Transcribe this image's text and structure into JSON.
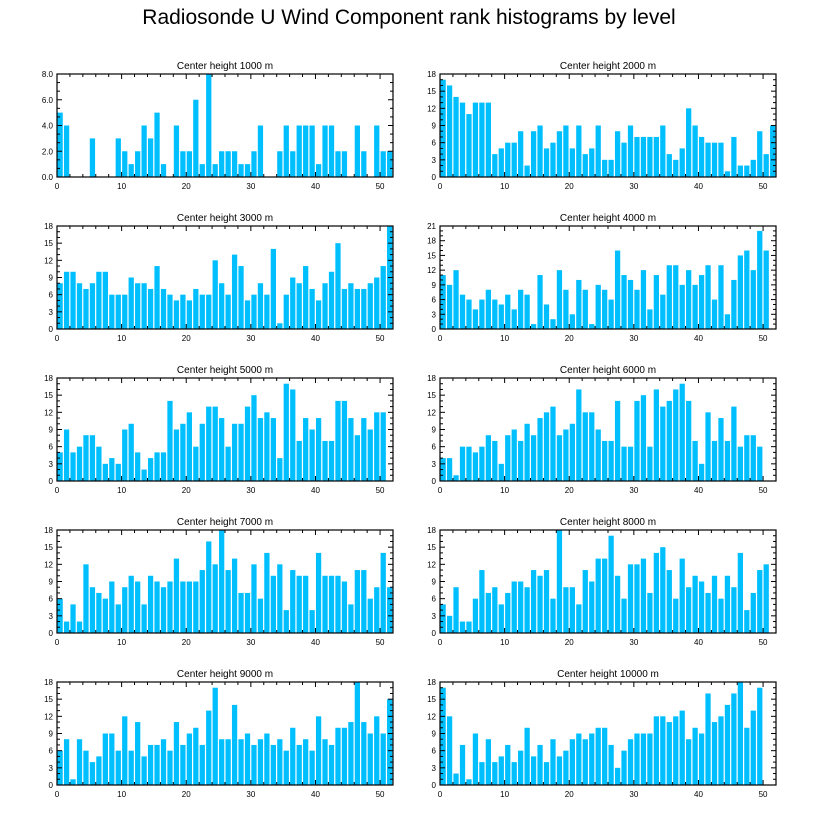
{
  "title": "Radiosonde U Wind Component rank histograms by level",
  "colors": {
    "bar": "#00BFFF",
    "axis": "#000000"
  },
  "chart_data": [
    {
      "type": "bar",
      "title": "Center height 1000 m",
      "ylim": [
        0,
        8
      ],
      "yticks": [
        "0.0",
        "2.0",
        "4.0",
        "6.0",
        "8.0"
      ],
      "ytick_values": [
        0,
        2,
        4,
        6,
        8
      ],
      "xticks": [
        0,
        10,
        20,
        30,
        40,
        50
      ],
      "xlim": [
        0,
        52
      ],
      "values": [
        5,
        4,
        0,
        0,
        0,
        3,
        0,
        0,
        0,
        3,
        2,
        1,
        2,
        4,
        3,
        5,
        1,
        0,
        4,
        2,
        2,
        6,
        1,
        8,
        1,
        2,
        2,
        2,
        1,
        1,
        2,
        4,
        0,
        0,
        2,
        4,
        2,
        4,
        4,
        4,
        1,
        4,
        4,
        2,
        2,
        0,
        4,
        2,
        0,
        4,
        2,
        2
      ]
    },
    {
      "type": "bar",
      "title": "Center height 2000 m",
      "ylim": [
        0,
        18
      ],
      "yticks": [
        "0",
        "3",
        "6",
        "9",
        "12",
        "15",
        "18"
      ],
      "ytick_values": [
        0,
        3,
        6,
        9,
        12,
        15,
        18
      ],
      "xticks": [
        0,
        10,
        20,
        30,
        40,
        50
      ],
      "xlim": [
        0,
        52
      ],
      "values": [
        17,
        16,
        14,
        13,
        11,
        13,
        13,
        13,
        4,
        5,
        6,
        6,
        8,
        2,
        8,
        9,
        5,
        6,
        8,
        9,
        5,
        9,
        4,
        5,
        9,
        3,
        3,
        8,
        6,
        9,
        7,
        7,
        7,
        7,
        9,
        4,
        3,
        5,
        12,
        9,
        7,
        6,
        6,
        6,
        1,
        7,
        2,
        2,
        3,
        8,
        4,
        9
      ]
    },
    {
      "type": "bar",
      "title": "Center height 3000 m",
      "ylim": [
        0,
        18
      ],
      "yticks": [
        "0",
        "3",
        "6",
        "9",
        "12",
        "15",
        "18"
      ],
      "ytick_values": [
        0,
        3,
        6,
        9,
        12,
        15,
        18
      ],
      "xticks": [
        0,
        10,
        20,
        30,
        40,
        50
      ],
      "xlim": [
        0,
        52
      ],
      "values": [
        8,
        10,
        10,
        8,
        7,
        8,
        10,
        10,
        6,
        6,
        6,
        9,
        8,
        8,
        7,
        11,
        7,
        6,
        5,
        6,
        5,
        7,
        6,
        6,
        12,
        8,
        6,
        13,
        11,
        5,
        6,
        8,
        6,
        14,
        1,
        6,
        9,
        8,
        11,
        7,
        5,
        8,
        10,
        15,
        7,
        8,
        7,
        7,
        8,
        9,
        11,
        18
      ]
    },
    {
      "type": "bar",
      "title": "Center height 4000 m",
      "ylim": [
        0,
        21
      ],
      "yticks": [
        "0",
        "3",
        "6",
        "9",
        "12",
        "15",
        "18",
        "21"
      ],
      "ytick_values": [
        0,
        3,
        6,
        9,
        12,
        15,
        18,
        21
      ],
      "xticks": [
        0,
        10,
        20,
        30,
        40,
        50
      ],
      "xlim": [
        0,
        52
      ],
      "values": [
        11,
        9,
        12,
        7,
        6,
        4,
        6,
        8,
        6,
        5,
        7,
        4,
        8,
        7,
        1,
        11,
        5,
        2,
        12,
        8,
        3,
        10,
        8,
        1,
        9,
        8,
        6,
        16,
        11,
        10,
        8,
        12,
        4,
        11,
        7,
        13,
        13,
        9,
        12,
        9,
        11,
        13,
        6,
        13,
        3,
        10,
        15,
        16,
        12,
        20,
        16,
        0
      ]
    },
    {
      "type": "bar",
      "title": "Center height 5000 m",
      "ylim": [
        0,
        18
      ],
      "yticks": [
        "0",
        "3",
        "6",
        "9",
        "12",
        "15",
        "18"
      ],
      "ytick_values": [
        0,
        3,
        6,
        9,
        12,
        15,
        18
      ],
      "xticks": [
        0,
        10,
        20,
        30,
        40,
        50
      ],
      "xlim": [
        0,
        52
      ],
      "values": [
        5,
        9,
        5,
        6,
        8,
        8,
        6,
        3,
        4,
        3,
        9,
        10,
        5,
        2,
        4,
        5,
        5,
        14,
        9,
        10,
        12,
        6,
        10,
        13,
        13,
        11,
        6,
        10,
        10,
        13,
        15,
        11,
        12,
        11,
        4,
        17,
        16,
        7,
        11,
        9,
        11,
        7,
        7,
        14,
        14,
        11,
        8,
        11,
        9,
        12,
        12,
        0
      ]
    },
    {
      "type": "bar",
      "title": "Center height 6000 m",
      "ylim": [
        0,
        18
      ],
      "yticks": [
        "0",
        "3",
        "6",
        "9",
        "12",
        "15",
        "18"
      ],
      "ytick_values": [
        0,
        3,
        6,
        9,
        12,
        15,
        18
      ],
      "xticks": [
        0,
        10,
        20,
        30,
        40,
        50
      ],
      "xlim": [
        0,
        52
      ],
      "values": [
        4,
        4,
        1,
        6,
        6,
        5,
        6,
        8,
        7,
        3,
        8,
        9,
        7,
        10,
        8,
        11,
        12,
        13,
        8,
        9,
        10,
        16,
        12,
        12,
        9,
        7,
        7,
        14,
        6,
        6,
        14,
        15,
        6,
        16,
        13,
        14,
        16,
        17,
        14,
        7,
        3,
        12,
        7,
        11,
        7,
        13,
        6,
        8,
        8,
        6,
        0,
        0
      ]
    },
    {
      "type": "bar",
      "title": "Center height 7000 m",
      "ylim": [
        0,
        18
      ],
      "yticks": [
        "0",
        "3",
        "6",
        "9",
        "12",
        "15",
        "18"
      ],
      "ytick_values": [
        0,
        3,
        6,
        9,
        12,
        15,
        18
      ],
      "xticks": [
        0,
        10,
        20,
        30,
        40,
        50
      ],
      "xlim": [
        0,
        52
      ],
      "values": [
        6,
        2,
        5,
        2,
        12,
        8,
        7,
        6,
        9,
        5,
        8,
        10,
        9,
        5,
        10,
        9,
        8,
        9,
        13,
        9,
        9,
        9,
        11,
        16,
        12,
        18,
        11,
        13,
        7,
        7,
        12,
        6,
        14,
        10,
        12,
        4,
        11,
        10,
        10,
        4,
        14,
        10,
        10,
        10,
        9,
        5,
        11,
        11,
        6,
        8,
        14,
        8
      ]
    },
    {
      "type": "bar",
      "title": "Center height 8000 m",
      "ylim": [
        0,
        18
      ],
      "yticks": [
        "0",
        "3",
        "6",
        "9",
        "12",
        "15",
        "18"
      ],
      "ytick_values": [
        0,
        3,
        6,
        9,
        12,
        15,
        18
      ],
      "xticks": [
        0,
        10,
        20,
        30,
        40,
        50
      ],
      "xlim": [
        0,
        52
      ],
      "values": [
        5,
        3,
        8,
        2,
        2,
        6,
        11,
        7,
        8,
        5,
        7,
        9,
        9,
        8,
        11,
        10,
        11,
        6,
        18,
        8,
        8,
        5,
        11,
        9,
        13,
        13,
        17,
        10,
        6,
        12,
        12,
        13,
        7,
        14,
        15,
        11,
        6,
        13,
        8,
        10,
        9,
        7,
        10,
        6,
        10,
        8,
        14,
        4,
        7,
        11,
        12,
        0
      ]
    },
    {
      "type": "bar",
      "title": "Center height 9000 m",
      "ylim": [
        0,
        18
      ],
      "yticks": [
        "0",
        "3",
        "6",
        "9",
        "12",
        "15",
        "18"
      ],
      "ytick_values": [
        0,
        3,
        6,
        9,
        12,
        15,
        18
      ],
      "xticks": [
        0,
        10,
        20,
        30,
        40,
        50
      ],
      "xlim": [
        0,
        52
      ],
      "values": [
        6,
        8,
        1,
        8,
        6,
        4,
        5,
        9,
        9,
        6,
        12,
        6,
        11,
        5,
        7,
        7,
        8,
        6,
        11,
        7,
        9,
        10,
        7,
        13,
        17,
        8,
        8,
        14,
        8,
        9,
        7,
        8,
        9,
        7,
        8,
        6,
        10,
        7,
        8,
        6,
        12,
        8,
        7,
        10,
        10,
        11,
        18,
        11,
        9,
        12,
        9,
        15
      ]
    },
    {
      "type": "bar",
      "title": "Center height 10000 m",
      "ylim": [
        0,
        18
      ],
      "yticks": [
        "0",
        "3",
        "6",
        "9",
        "12",
        "15",
        "18"
      ],
      "ytick_values": [
        0,
        3,
        6,
        9,
        12,
        15,
        18
      ],
      "xticks": [
        0,
        10,
        20,
        30,
        40,
        50
      ],
      "xlim": [
        0,
        52
      ],
      "values": [
        17,
        12,
        2,
        7,
        1,
        9,
        4,
        8,
        4,
        5,
        7,
        4,
        6,
        10,
        5,
        7,
        4,
        8,
        5,
        6,
        8,
        9,
        8,
        9,
        10,
        10,
        7,
        3,
        6,
        8,
        9,
        9,
        9,
        12,
        12,
        11,
        12,
        13,
        8,
        10,
        9,
        16,
        11,
        12,
        14,
        16,
        18,
        10,
        13,
        17,
        0,
        0
      ]
    }
  ]
}
